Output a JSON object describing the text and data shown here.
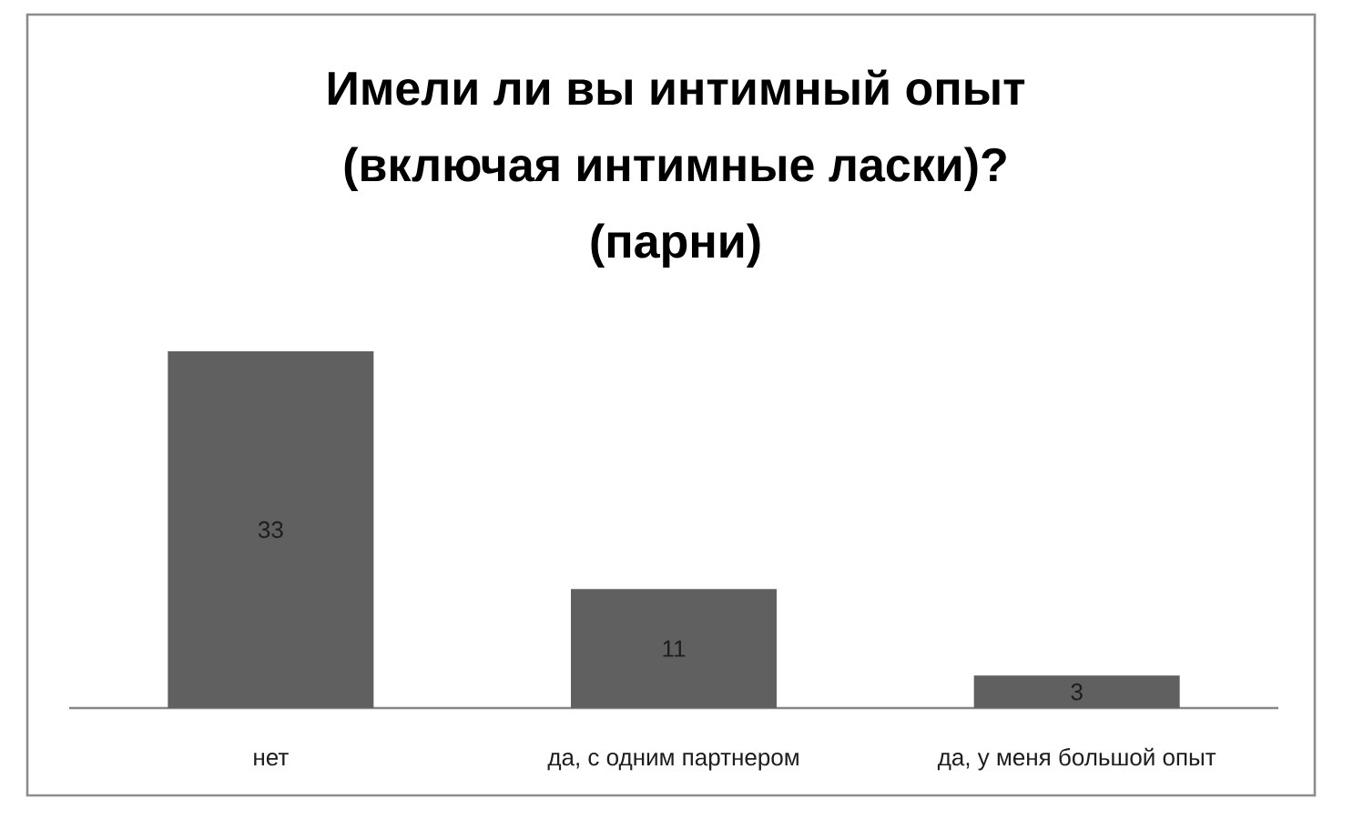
{
  "chart_data": {
    "type": "bar",
    "title": "Имели ли вы интимный опыт (включая интимные ласки)? (парни)",
    "categories": [
      "нет",
      "да, с одним партнером",
      "да, у меня большой опыт"
    ],
    "values": [
      33,
      11,
      3
    ],
    "color": "#606060",
    "data_labels": true
  }
}
